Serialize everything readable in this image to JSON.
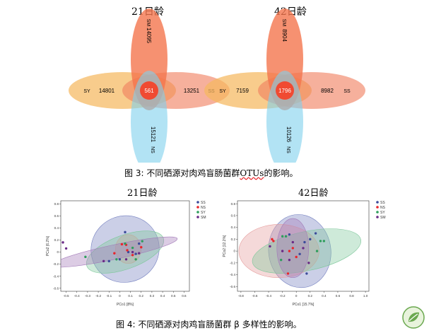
{
  "figure3": {
    "caption_label": "图 3:",
    "caption_text": "不同硒源对肉鸡盲肠菌群",
    "caption_otu": "OTUs",
    "caption_suffix": "的影响。",
    "venn": [
      {
        "title": "21日龄",
        "sets": [
          {
            "name": "SM",
            "value": "14095",
            "color": "#f4754d"
          },
          {
            "name": "SY",
            "value": "14801",
            "color": "#f5b860"
          },
          {
            "name": "SS",
            "value": "13251",
            "color": "#f08060"
          },
          {
            "name": "NS",
            "value": "15121",
            "color": "#7fd0ec"
          }
        ],
        "core": "561"
      },
      {
        "title": "42日龄",
        "sets": [
          {
            "name": "SM",
            "value": "8904",
            "color": "#f4754d"
          },
          {
            "name": "SY",
            "value": "7159",
            "color": "#f5b860"
          },
          {
            "name": "SS",
            "value": "8982",
            "color": "#f08060"
          },
          {
            "name": "NS",
            "value": "10126",
            "color": "#7fd0ec"
          }
        ],
        "core": "1796"
      }
    ]
  },
  "figure4": {
    "caption_label": "图 4:",
    "caption_text": "不同硒源对肉鸡盲肠菌群 β 多样性的影响。"
  },
  "chart_data": [
    {
      "type": "scatter",
      "title": "21日龄",
      "xlabel": "PCo1 [8%]",
      "ylabel": "PCo2 [6.2%]",
      "xlim": [
        -0.55,
        0.65
      ],
      "ylim": [
        -0.65,
        0.85
      ],
      "xticks": [
        "-0.5",
        "-0.4",
        "-0.3",
        "-0.2",
        "-0.1",
        "0",
        "0.1",
        "0.2",
        "0.3",
        "0.4",
        "0.5",
        "0.6"
      ],
      "yticks": [
        "0.8",
        "0.6",
        "0.4",
        "0.2",
        "0",
        "-0.2",
        "-0.4",
        "-0.6"
      ],
      "legend": [
        "SS",
        "NS",
        "SY",
        "SM"
      ],
      "series": [
        {
          "name": "SS",
          "color": "#3b4a9a",
          "points": [
            [
              0.05,
              0.33
            ],
            [
              0.08,
              0.0
            ],
            [
              0.15,
              -0.03
            ],
            [
              -0.1,
              -0.15
            ],
            [
              0.0,
              -0.12
            ],
            [
              0.18,
              0.14
            ]
          ]
        },
        {
          "name": "NS",
          "color": "#e8262c",
          "points": [
            [
              0.02,
              0.13
            ],
            [
              0.06,
              0.12
            ],
            [
              0.07,
              0.03
            ],
            [
              -0.05,
              -0.02
            ],
            [
              0.12,
              -0.05
            ],
            [
              0.2,
              0.08
            ]
          ]
        },
        {
          "name": "SY",
          "color": "#2e9e5c",
          "points": [
            [
              -0.32,
              -0.08
            ],
            [
              0.05,
              0.14
            ],
            [
              0.15,
              -0.12
            ],
            [
              0.12,
              0.07
            ],
            [
              -0.03,
              -0.12
            ],
            [
              0.21,
              0.18
            ]
          ]
        },
        {
          "name": "SM",
          "color": "#6a2a86",
          "points": [
            [
              -0.53,
              0.16
            ],
            [
              -0.5,
              0.06
            ],
            [
              0.12,
              0.0
            ],
            [
              -0.15,
              -0.15
            ],
            [
              0.06,
              -0.12
            ],
            [
              0.18,
              -0.02
            ]
          ]
        }
      ],
      "ellipses": [
        {
          "group": "SS",
          "color": "#7580c0",
          "cx": 0.05,
          "cy": 0.05,
          "rx": 0.32,
          "ry": 0.55,
          "rot": -25
        },
        {
          "group": "NS",
          "color": "#e59a9a",
          "cx": 0.08,
          "cy": 0.05,
          "rx": 0.12,
          "ry": 0.24,
          "rot": 0
        },
        {
          "group": "SY",
          "color": "#7dc79a",
          "cx": 0.05,
          "cy": 0.0,
          "rx": 0.38,
          "ry": 0.28,
          "rot": -20
        },
        {
          "group": "SM",
          "color": "#a27ab8",
          "cx": -0.05,
          "cy": 0.0,
          "rx": 0.6,
          "ry": 0.12,
          "rot": -12
        }
      ]
    },
    {
      "type": "scatter",
      "title": "42日龄",
      "xlabel": "PCo1 [15.7%]",
      "ylabel": "PCo2 [12.2%]",
      "xlim": [
        -0.85,
        1.05
      ],
      "ylim": [
        -0.68,
        0.85
      ],
      "xticks": [
        "-0.8",
        "-0.6",
        "-0.4",
        "-0.2",
        "0",
        "0.2",
        "0.4",
        "0.6",
        "0.8",
        "1.0"
      ],
      "yticks": [
        "0.8",
        "0.6",
        "0.4",
        "0.2",
        "0",
        "-0.2",
        "-0.4",
        "-0.6"
      ],
      "legend": [
        "SS",
        "NS",
        "SY",
        "SM"
      ],
      "series": [
        {
          "name": "SS",
          "color": "#3b4a9a",
          "points": [
            [
              -0.1,
              0.28
            ],
            [
              0.12,
              0.15
            ],
            [
              0.2,
              0.2
            ],
            [
              0.28,
              0.3
            ],
            [
              0.05,
              -0.05
            ],
            [
              0.15,
              -0.38
            ]
          ]
        },
        {
          "name": "NS",
          "color": "#e8262c",
          "points": [
            [
              -0.35,
              0.2
            ],
            [
              -0.33,
              0.17
            ],
            [
              -0.1,
              0.0
            ],
            [
              -0.05,
              0.05
            ],
            [
              0.0,
              -0.1
            ],
            [
              -0.12,
              -0.38
            ]
          ]
        },
        {
          "name": "SY",
          "color": "#2e9e5c",
          "points": [
            [
              -0.2,
              0.25
            ],
            [
              -0.15,
              0.25
            ],
            [
              0.35,
              0.17
            ],
            [
              0.4,
              0.17
            ],
            [
              0.3,
              0.0
            ],
            [
              -0.22,
              -0.15
            ]
          ]
        },
        {
          "name": "SM",
          "color": "#6a2a86",
          "points": [
            [
              -0.38,
              0.08
            ],
            [
              -0.2,
              0.0
            ],
            [
              -0.05,
              0.15
            ],
            [
              0.1,
              0.05
            ],
            [
              -0.1,
              -0.15
            ],
            [
              0.18,
              -0.2
            ]
          ]
        }
      ],
      "ellipses": [
        {
          "group": "SS",
          "color": "#7580c0",
          "cx": 0.05,
          "cy": 0.0,
          "rx": 0.45,
          "ry": 0.62,
          "rot": -8
        },
        {
          "group": "NS",
          "color": "#e59a9a",
          "cx": -0.25,
          "cy": 0.0,
          "rx": 0.58,
          "ry": 0.45,
          "rot": 0
        },
        {
          "group": "SY",
          "color": "#7dc79a",
          "cx": 0.15,
          "cy": 0.0,
          "rx": 0.8,
          "ry": 0.33,
          "rot": -12
        },
        {
          "group": "SM",
          "color": "#a27ab8",
          "cx": -0.05,
          "cy": 0.05,
          "rx": 0.23,
          "ry": 0.5,
          "rot": 0
        }
      ]
    }
  ]
}
